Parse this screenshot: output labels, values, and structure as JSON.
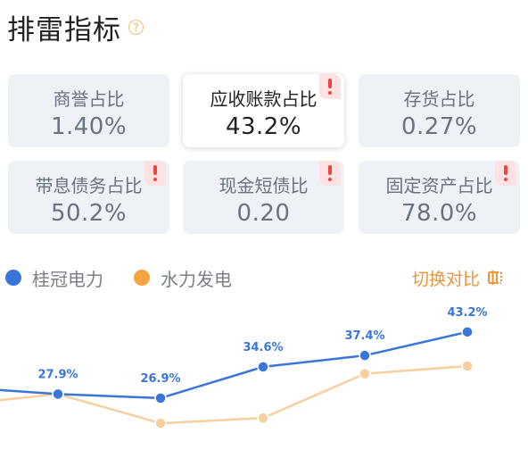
{
  "header": {
    "title": "排雷指标",
    "help_icon": "?"
  },
  "cards": [
    {
      "label": "商誉占比",
      "value": "1.40%",
      "warning": false,
      "active": false
    },
    {
      "label": "应收账款占比",
      "value": "43.2%",
      "warning": true,
      "active": true
    },
    {
      "label": "存货占比",
      "value": "0.27%",
      "warning": false,
      "active": false
    },
    {
      "label": "带息债务占比",
      "value": "50.2%",
      "warning": true,
      "active": false
    },
    {
      "label": "现金短债比",
      "value": "0.20",
      "warning": true,
      "active": false
    },
    {
      "label": "固定资产占比",
      "value": "78.0%",
      "warning": true,
      "active": false
    }
  ],
  "legend": {
    "items": [
      {
        "name": "桂冠电力",
        "color": "#3a76d8"
      },
      {
        "name": "水力发电",
        "color": "#f5a442"
      }
    ],
    "switch_label": "切换对比",
    "switch_icon": "switch-icon"
  },
  "chart_data": {
    "type": "line",
    "x_label_visible": false,
    "series": [
      {
        "name": "桂冠电力",
        "color": "#3a76d8",
        "values": [
          27.9,
          26.9,
          34.6,
          37.4,
          43.2
        ],
        "labels": [
          "27.9%",
          "26.9%",
          "34.6%",
          "37.4%",
          "43.2%"
        ]
      },
      {
        "name": "水力发电",
        "color": "#f8cf9e",
        "values": [
          27.9,
          20.7,
          22.0,
          32.9,
          34.8
        ]
      }
    ],
    "leading_values": {
      "桂冠电力": 28.9,
      "水力发电": 26.4
    },
    "ylim": [
      15,
      48
    ]
  }
}
